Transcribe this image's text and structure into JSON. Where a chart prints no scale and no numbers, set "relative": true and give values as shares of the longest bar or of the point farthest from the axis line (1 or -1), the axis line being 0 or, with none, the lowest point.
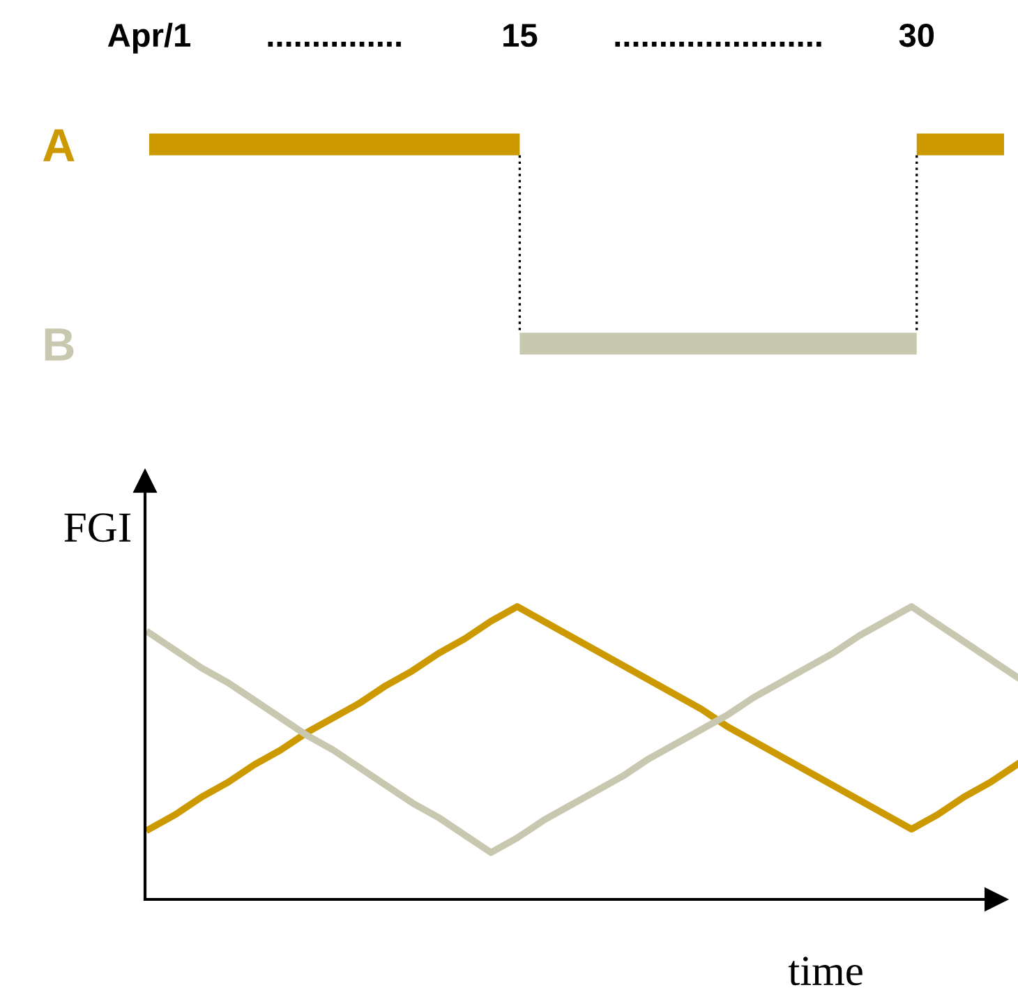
{
  "chart_data": [
    {
      "type": "bar",
      "orientation": "horizontal",
      "categories": [
        "A",
        "B"
      ],
      "xlim": [
        1,
        33.3
      ],
      "xticks": [
        {
          "value": 1,
          "label": "Apr/1"
        },
        15,
        30
      ],
      "annotations": [
        "...............",
        "......................."
      ],
      "series": [
        {
          "color": "#cc9900",
          "values": [
            14,
            null
          ],
          "base": [
            1,
            null
          ]
        },
        {
          "color": "#c8c8b0",
          "values": [
            null,
            15
          ],
          "base": [
            null,
            15
          ]
        },
        {
          "color": "#cc9900",
          "values": [
            3.3,
            null
          ],
          "base": [
            30,
            null
          ]
        }
      ]
    },
    {
      "type": "line",
      "relative": true,
      "xlabel": "time",
      "ylabel": "FGI",
      "categories": [
        null,
        null,
        null,
        null,
        null,
        null,
        null,
        null,
        null,
        null,
        null,
        null,
        null,
        null,
        null,
        null,
        null,
        null,
        null,
        null,
        null,
        null,
        null,
        null,
        null,
        null,
        null,
        null,
        null,
        null,
        null,
        null,
        null,
        null
      ],
      "series": [
        {
          "color": "#cc9900",
          "values": [
            0.24,
            0.29,
            0.35,
            0.4,
            0.46,
            0.51,
            0.57,
            0.62,
            0.67,
            0.73,
            0.78,
            0.84,
            0.89,
            0.95,
            1.0,
            0.95,
            0.9,
            0.85,
            0.8,
            0.75,
            0.7,
            0.65,
            0.59,
            0.54,
            0.49,
            0.44,
            0.39,
            0.34,
            0.29,
            0.24,
            0.29,
            0.35,
            0.4,
            0.46
          ]
        },
        {
          "color": "#c8c8b0",
          "values": [
            0.91,
            0.85,
            0.79,
            0.74,
            0.68,
            0.62,
            0.56,
            0.51,
            0.45,
            0.39,
            0.33,
            0.28,
            0.22,
            0.16,
            0.21,
            0.27,
            0.32,
            0.37,
            0.42,
            0.48,
            0.53,
            0.58,
            0.63,
            0.69,
            0.74,
            0.79,
            0.84,
            0.9,
            0.95,
            1.0,
            0.94,
            0.88,
            0.82,
            0.76
          ]
        }
      ]
    }
  ]
}
